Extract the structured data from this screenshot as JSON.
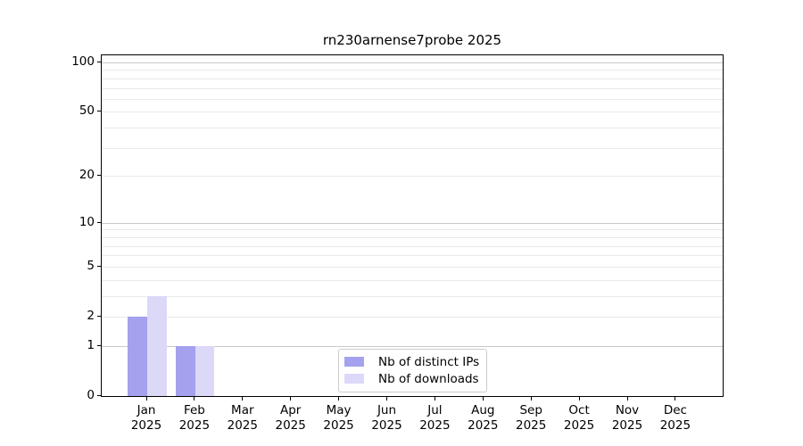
{
  "chart_data": {
    "type": "bar",
    "title": "rn230arnense7probe 2025",
    "categories": [
      "Jan",
      "Feb",
      "Mar",
      "Apr",
      "May",
      "Jun",
      "Jul",
      "Aug",
      "Sep",
      "Oct",
      "Nov",
      "Dec"
    ],
    "year_label": "2025",
    "series": [
      {
        "name": "Nb of distinct IPs",
        "color": "#a4a1ee",
        "values": [
          2,
          1,
          0,
          0,
          0,
          0,
          0,
          0,
          0,
          0,
          0,
          0
        ]
      },
      {
        "name": "Nb of downloads",
        "color": "#dbd9f7",
        "values": [
          3,
          1,
          0,
          0,
          0,
          0,
          0,
          0,
          0,
          0,
          0,
          0
        ]
      }
    ],
    "y_scale": "log1p",
    "y_ticks": [
      0,
      1,
      2,
      5,
      10,
      20,
      50,
      100
    ],
    "y_decade_ticks": [
      1,
      10,
      100
    ],
    "y_minor_gridlines": [
      3,
      4,
      6,
      7,
      8,
      9,
      30,
      40,
      60,
      70,
      80,
      90
    ],
    "y_max": 100,
    "xlabel": "",
    "ylabel": "",
    "grid": true,
    "legend_position": "lower center"
  }
}
